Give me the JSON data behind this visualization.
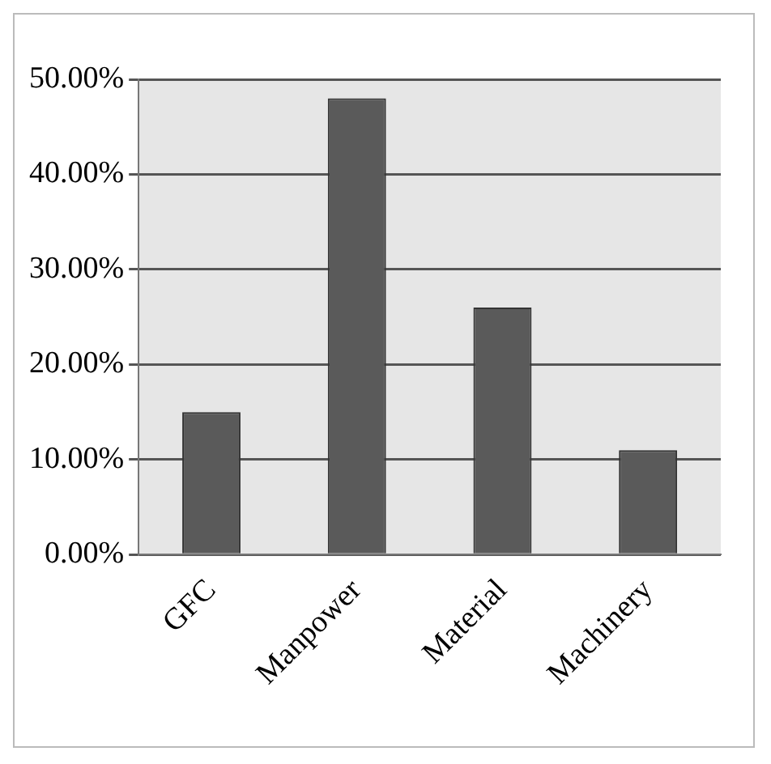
{
  "chart_data": {
    "type": "bar",
    "categories": [
      "GFC",
      "Manpower",
      "Material",
      "Machinery"
    ],
    "values": [
      15,
      48,
      26,
      11
    ],
    "color": "#5a5a5a",
    "ylim": [
      0,
      50
    ],
    "yticks": [
      {
        "value": 0,
        "label": "0.00%"
      },
      {
        "value": 10,
        "label": "10.00%"
      },
      {
        "value": 20,
        "label": "20.00%"
      },
      {
        "value": 30,
        "label": "30.00%"
      },
      {
        "value": 40,
        "label": "40.00%"
      },
      {
        "value": 50,
        "label": "50.00%"
      }
    ],
    "grid": "y",
    "legend": false
  }
}
